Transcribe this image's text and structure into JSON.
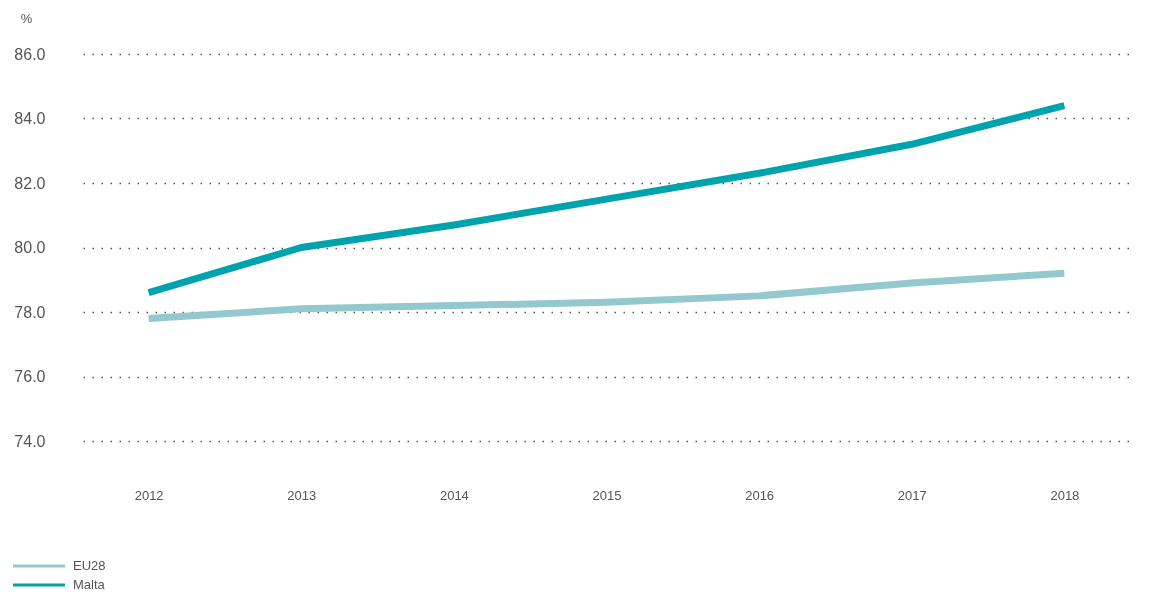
{
  "chart_data": {
    "type": "line",
    "ylabel": "%",
    "categories": [
      "2012",
      "2013",
      "2014",
      "2015",
      "2016",
      "2017",
      "2018"
    ],
    "series": [
      {
        "name": "EU28",
        "color": "#93c8cf",
        "values": [
          77.8,
          78.1,
          78.2,
          78.3,
          78.5,
          78.9,
          79.2
        ]
      },
      {
        "name": "Malta",
        "color": "#00a3ad",
        "values": [
          78.6,
          80.0,
          80.7,
          81.5,
          82.3,
          83.2,
          84.4
        ]
      }
    ],
    "ylim": [
      74,
      86
    ],
    "yticks": [
      {
        "value": 74,
        "label": "74.0"
      },
      {
        "value": 76,
        "label": "76.0"
      },
      {
        "value": 78,
        "label": "78.0"
      },
      {
        "value": 80,
        "label": "80.0"
      },
      {
        "value": 82,
        "label": "82.0"
      },
      {
        "value": 84,
        "label": "84.0"
      },
      {
        "value": 86,
        "label": "86.0"
      }
    ],
    "grid": "y",
    "legend": "bottom left",
    "line_style": "solid"
  }
}
